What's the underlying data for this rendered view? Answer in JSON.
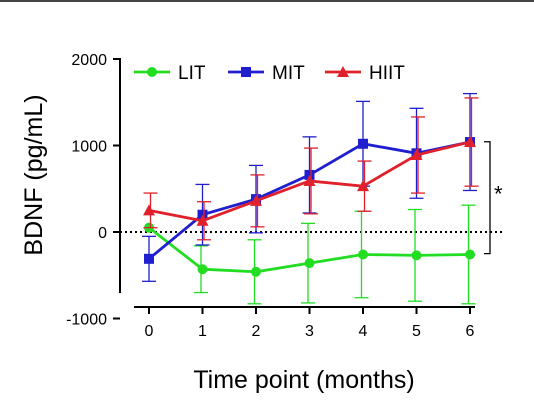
{
  "chart_data": {
    "type": "line",
    "xlabel": "Time point (months)",
    "ylabel": "BDNF  (pg/mL)",
    "x": [
      0,
      1,
      2,
      3,
      4,
      5,
      6
    ],
    "x_ticks": [
      "0",
      "1",
      "2",
      "3",
      "4",
      "5",
      "6"
    ],
    "ylim": [
      -1000,
      2000
    ],
    "y_ticks": [
      "-1000",
      "0",
      "1000",
      "2000"
    ],
    "reference_line_y": 0,
    "legend_position": "top-left",
    "series": [
      {
        "name": "LIT",
        "color": "#22dd22",
        "marker": "circle",
        "values": [
          50,
          -430,
          -460,
          -360,
          -260,
          -270,
          -260
        ],
        "errors": [
          0,
          270,
          370,
          460,
          500,
          530,
          570
        ]
      },
      {
        "name": "MIT",
        "color": "#1f1fd0",
        "marker": "square",
        "values": [
          -310,
          200,
          380,
          660,
          1020,
          910,
          1040
        ],
        "errors": [
          260,
          350,
          390,
          440,
          490,
          520,
          560
        ]
      },
      {
        "name": "HIIT",
        "color": "#e0202a",
        "marker": "triangle",
        "values": [
          250,
          130,
          360,
          590,
          530,
          890,
          1040
        ],
        "errors": [
          200,
          220,
          300,
          380,
          290,
          440,
          510
        ]
      }
    ],
    "annotation": {
      "text": "*",
      "x_from": 6,
      "y_from": -250,
      "y_to": 1020
    }
  }
}
